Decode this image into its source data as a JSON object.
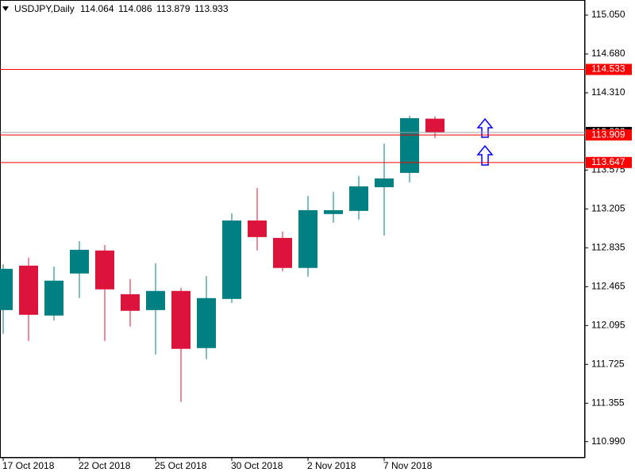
{
  "chart_data": {
    "type": "candlestick",
    "title": "USDJPY,Daily",
    "categories": [
      "17 Oct 2018",
      null,
      null,
      "22 Oct 2018",
      null,
      null,
      "25 Oct 2018",
      null,
      null,
      "30 Oct 2018",
      null,
      null,
      "2 Nov 2018",
      null,
      null,
      "7 Nov 2018",
      null,
      null
    ],
    "open": [
      112.242,
      112.665,
      112.19,
      112.59,
      112.809,
      112.393,
      112.242,
      112.424,
      111.88,
      112.348,
      113.095,
      112.929,
      112.643,
      113.156,
      113.186,
      113.412,
      113.548,
      114.064
    ],
    "high": [
      112.68,
      112.741,
      112.657,
      112.899,
      112.861,
      112.537,
      112.688,
      112.454,
      112.567,
      113.163,
      113.405,
      112.99,
      113.329,
      113.367,
      113.518,
      113.827,
      114.092,
      114.086
    ],
    "low": [
      112.016,
      111.948,
      112.144,
      112.356,
      111.948,
      112.084,
      111.82,
      111.367,
      111.775,
      112.31,
      112.809,
      112.612,
      112.56,
      113.073,
      113.103,
      112.952,
      113.458,
      113.879
    ],
    "close": [
      112.635,
      112.197,
      112.522,
      112.816,
      112.439,
      112.235,
      112.424,
      111.873,
      112.356,
      113.095,
      112.937,
      112.643,
      113.193,
      113.193,
      113.42,
      113.495,
      114.069,
      113.933
    ],
    "up_color": "#008080",
    "down_color": "#dc143c",
    "ylim": [
      110.84,
      115.19
    ],
    "yticks": [
      {
        "value": 115.05,
        "label": "115.050"
      },
      {
        "value": 114.68,
        "label": "114.680"
      },
      {
        "value": 114.31,
        "label": "114.310"
      },
      113.575,
      113.205,
      112.835,
      112.465,
      112.095,
      111.725,
      111.355,
      {
        "value": 110.99,
        "label": "110.990"
      }
    ],
    "bid": 113.933,
    "levels": [
      114.533,
      113.909,
      113.647
    ],
    "level_color": "#ff0000"
  }
}
